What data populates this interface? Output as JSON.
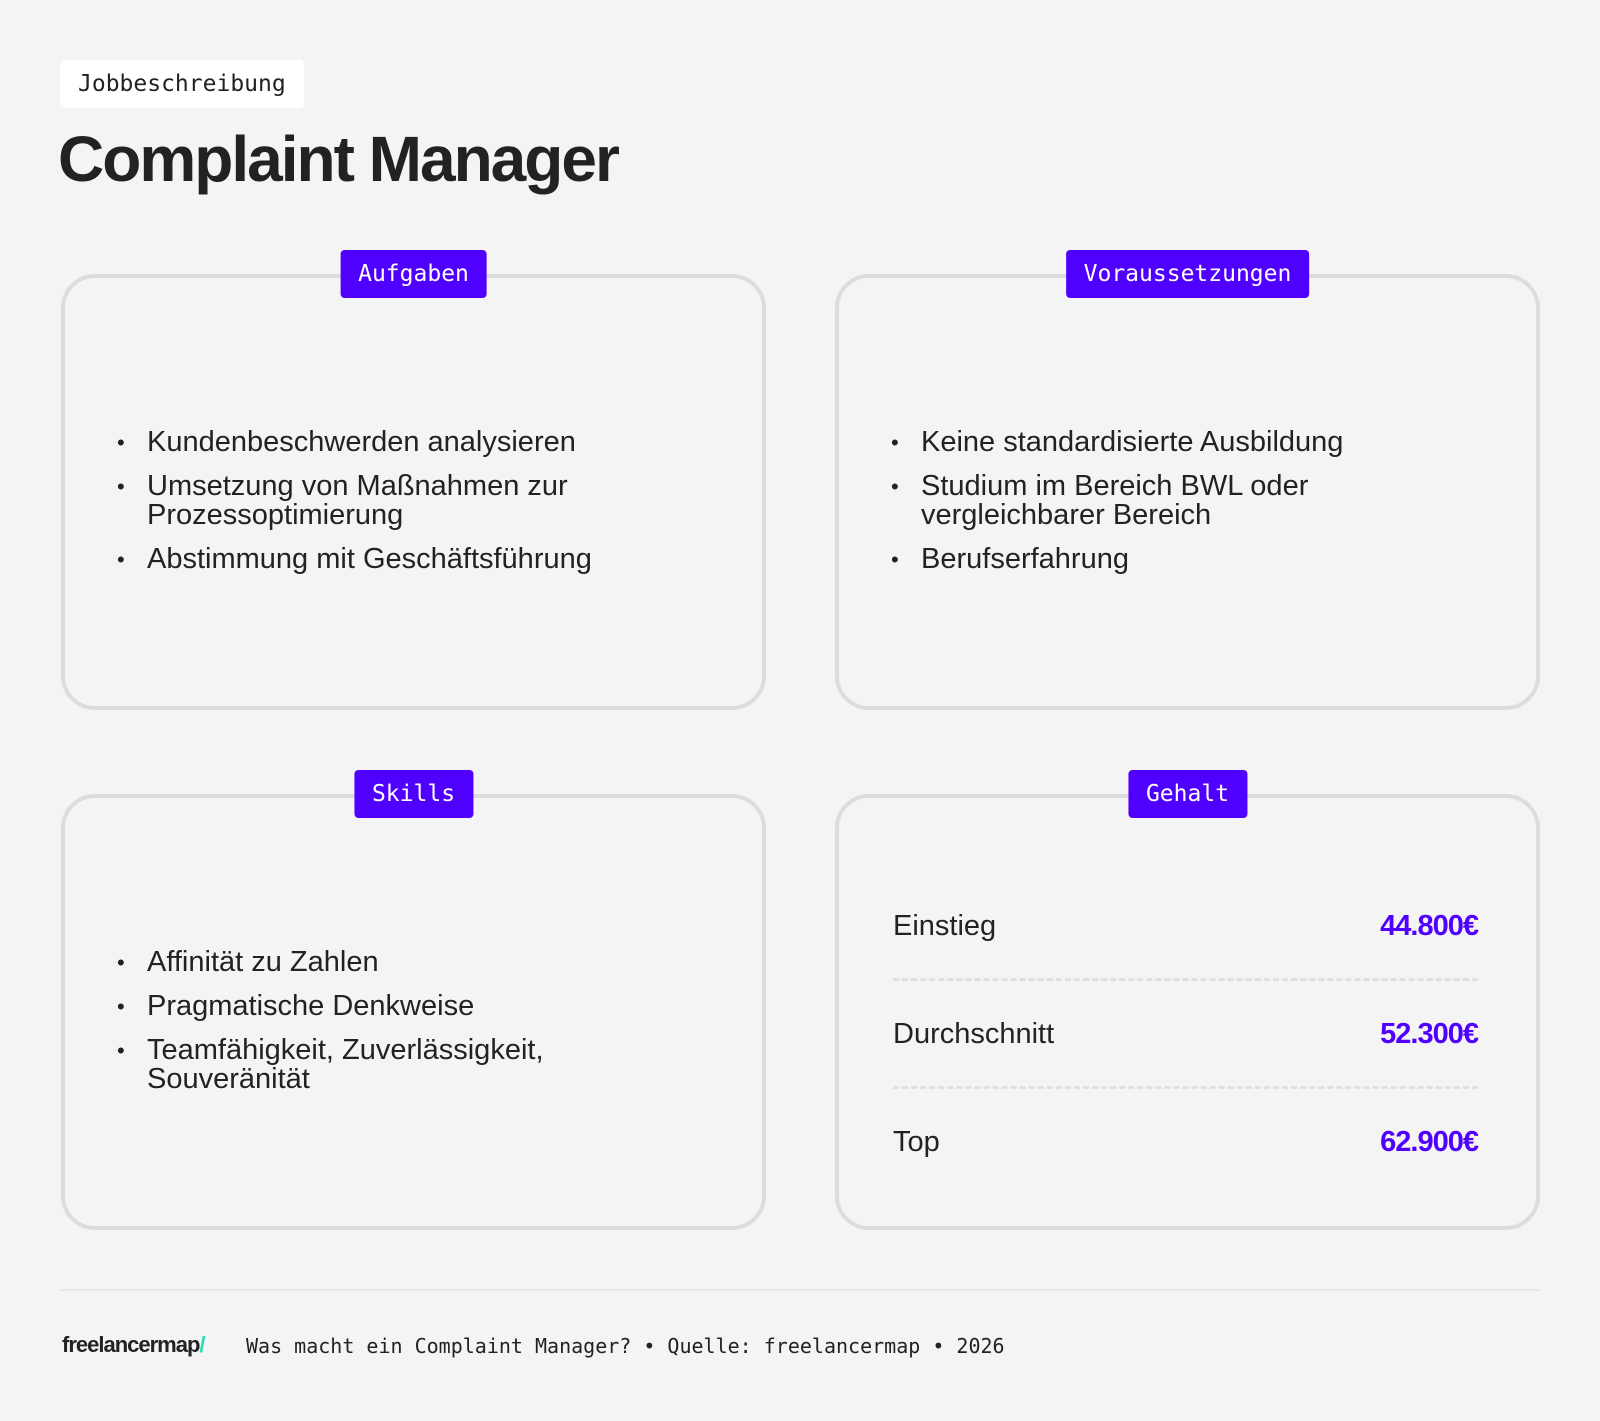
{
  "header": {
    "tag": "Jobbeschreibung",
    "title": "Complaint Manager"
  },
  "cards": {
    "aufgaben": {
      "label": "Aufgaben",
      "items": [
        "Kundenbeschwerden analysieren",
        "Umsetzung von Maßnahmen zur Prozessoptimierung",
        "Abstimmung mit Geschäftsführung"
      ]
    },
    "voraussetzungen": {
      "label": "Voraussetzungen",
      "items": [
        "Keine standardisierte Ausbildung",
        "Studium im Bereich BWL oder vergleichbarer Bereich",
        "Berufserfahrung"
      ]
    },
    "skills": {
      "label": "Skills",
      "items": [
        "Affinität zu Zahlen",
        "Pragmatische Denkweise",
        "Teamfähigkeit, Zuverlässigkeit, Souveränität"
      ]
    },
    "gehalt": {
      "label": "Gehalt",
      "rows": [
        {
          "label": "Einstieg",
          "value": "44.800€"
        },
        {
          "label": "Durchschnitt",
          "value": "52.300€"
        },
        {
          "label": "Top",
          "value": "62.900€"
        }
      ]
    }
  },
  "footer": {
    "logo": "freelancermap",
    "logo_slash": "/",
    "text": "Was macht ein Complaint Manager? • Quelle: freelancermap • 2026"
  },
  "colors": {
    "accent": "#5000ff",
    "logo_slash": "#1fe0b0",
    "background": "#f4f4f4"
  }
}
